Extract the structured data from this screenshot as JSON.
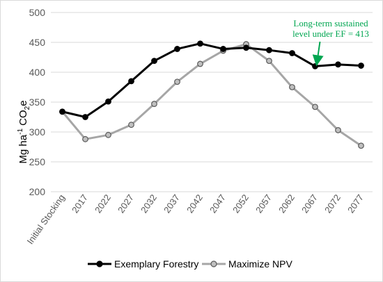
{
  "chart_data": {
    "type": "line",
    "ylabel_main": "Mg ha",
    "ylabel_sup": "-1",
    "ylabel_co": " CO",
    "ylabel_sub": "2",
    "ylabel_end": "e",
    "categories": [
      "Initial Stocking",
      "2017",
      "2022",
      "2027",
      "2032",
      "2037",
      "2042",
      "2047",
      "2052",
      "2057",
      "2062",
      "2067",
      "2072",
      "2077"
    ],
    "ylim": [
      200,
      500
    ],
    "yticks": [
      200,
      250,
      300,
      350,
      400,
      450,
      500
    ],
    "series": [
      {
        "name": "Exemplary Forestry",
        "color": "#000000",
        "marker_fill": "#000000",
        "values": [
          334,
          325,
          351,
          385,
          419,
          439,
          448,
          439,
          441,
          437,
          432,
          410,
          413,
          411
        ]
      },
      {
        "name": "Maximize NPV",
        "color": "#a6a6a6",
        "marker_fill": "#bfbfbf",
        "values": [
          334,
          288,
          295,
          312,
          347,
          384,
          414,
          436,
          447,
          419,
          375,
          342,
          303,
          277
        ]
      }
    ],
    "annotation": {
      "line1": "Long-term sustained",
      "line2": "level under EF = 413",
      "color": "#00a651",
      "target_index": 11,
      "target_value": 410
    },
    "legend_position": "bottom",
    "grid": true
  }
}
